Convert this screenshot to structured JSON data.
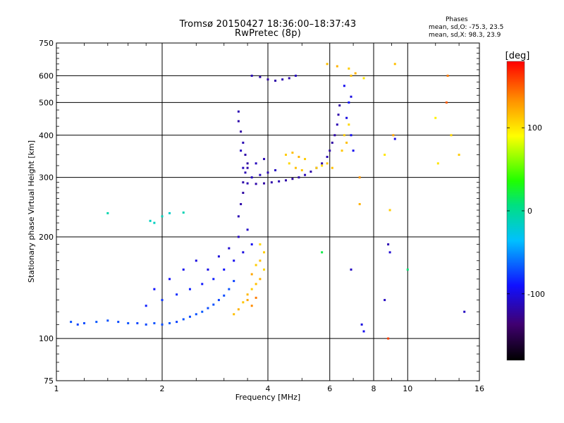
{
  "header": {
    "title_line1": "Tromsø 20150427 18:36:00–18:37:43",
    "title_line2": "RwPretec (8p)",
    "phase_heading": "Phases",
    "phase_o": "mean, sd,O: -75.3, 23.5",
    "phase_x": "mean, sd,X:  98.3, 23.9"
  },
  "colorbar": {
    "unit_label": "[deg]",
    "tick_labels": [
      "100",
      "0",
      "-100"
    ],
    "tick_values": [
      100,
      0,
      -100
    ],
    "range": [
      -180,
      180
    ]
  },
  "chart_data": {
    "type": "scatter",
    "xlabel": "Frequency [MHz]",
    "ylabel": "Stationary phase Virtual Height [km]",
    "x_scale": "log",
    "y_scale": "log",
    "xlim": [
      1,
      16
    ],
    "ylim": [
      75,
      750
    ],
    "x_ticks": [
      1,
      2,
      4,
      6,
      8,
      10,
      16
    ],
    "x_tick_labels": [
      "1",
      "2",
      "4",
      "6",
      "8",
      "10",
      "16"
    ],
    "y_ticks": [
      75,
      100,
      200,
      300,
      400,
      500,
      600,
      750
    ],
    "y_tick_labels": [
      "75",
      "100",
      "200",
      "300",
      "400",
      "500",
      "600",
      "750"
    ],
    "grid": true,
    "series": [
      {
        "values": [
          [
            1.1,
            112,
            -70
          ],
          [
            1.15,
            110,
            -75
          ],
          [
            1.2,
            111,
            -72
          ],
          [
            1.3,
            112,
            -68
          ],
          [
            1.4,
            113,
            -70
          ],
          [
            1.5,
            112,
            -72
          ],
          [
            1.6,
            111,
            -70
          ],
          [
            1.7,
            111,
            -74
          ],
          [
            1.8,
            110,
            -73
          ],
          [
            1.9,
            111,
            -70
          ],
          [
            2.0,
            110,
            -72
          ],
          [
            2.1,
            111,
            -68
          ],
          [
            2.2,
            112,
            -75
          ],
          [
            2.3,
            114,
            -70
          ],
          [
            2.4,
            116,
            -72
          ],
          [
            2.5,
            118,
            -70
          ],
          [
            2.6,
            120,
            -68
          ],
          [
            2.7,
            123,
            -72
          ],
          [
            2.8,
            126,
            -70
          ],
          [
            2.9,
            130,
            -74
          ],
          [
            3.0,
            134,
            -72
          ],
          [
            3.1,
            140,
            -70
          ],
          [
            3.2,
            148,
            -75
          ],
          [
            1.8,
            125,
            -85
          ],
          [
            2.0,
            130,
            -80
          ],
          [
            2.2,
            135,
            -82
          ],
          [
            2.4,
            140,
            -85
          ],
          [
            2.6,
            145,
            -88
          ],
          [
            2.8,
            150,
            -86
          ],
          [
            3.0,
            160,
            -90
          ],
          [
            3.2,
            170,
            -95
          ],
          [
            3.4,
            180,
            -100
          ],
          [
            3.6,
            190,
            -95
          ],
          [
            1.9,
            140,
            -90
          ],
          [
            2.1,
            150,
            -92
          ],
          [
            2.3,
            160,
            -95
          ],
          [
            2.5,
            170,
            -100
          ],
          [
            2.7,
            160,
            -98
          ],
          [
            2.9,
            175,
            -102
          ],
          [
            3.1,
            185,
            -105
          ],
          [
            3.3,
            200,
            -110
          ],
          [
            3.5,
            210,
            -108
          ],
          [
            3.3,
            230,
            -115
          ],
          [
            3.35,
            250,
            -118
          ],
          [
            3.4,
            270,
            -120
          ],
          [
            3.4,
            290,
            -118
          ],
          [
            3.45,
            310,
            -115
          ],
          [
            3.5,
            330,
            -120
          ],
          [
            3.45,
            350,
            -118
          ],
          [
            3.4,
            380,
            -115
          ],
          [
            3.35,
            410,
            -120
          ],
          [
            3.3,
            440,
            -118
          ],
          [
            3.3,
            470,
            -115
          ],
          [
            3.35,
            360,
            -110
          ],
          [
            3.4,
            320,
            -112
          ],
          [
            3.5,
            288,
            -115
          ],
          [
            3.7,
            287,
            -118
          ],
          [
            3.9,
            288,
            -120
          ],
          [
            4.1,
            290,
            -118
          ],
          [
            4.3,
            292,
            -115
          ],
          [
            4.5,
            294,
            -118
          ],
          [
            4.7,
            297,
            -120
          ],
          [
            4.9,
            300,
            -118
          ],
          [
            5.1,
            305,
            -115
          ],
          [
            5.3,
            312,
            -118
          ],
          [
            5.5,
            320,
            -120
          ],
          [
            5.7,
            330,
            -118
          ],
          [
            5.9,
            345,
            -115
          ],
          [
            6.0,
            360,
            -118
          ],
          [
            6.1,
            380,
            -120
          ],
          [
            6.2,
            400,
            -118
          ],
          [
            6.3,
            430,
            -115
          ],
          [
            6.35,
            460,
            -118
          ],
          [
            6.4,
            490,
            -120
          ],
          [
            3.6,
            300,
            -110
          ],
          [
            3.8,
            305,
            -112
          ],
          [
            4.0,
            310,
            -115
          ],
          [
            4.2,
            315,
            -110
          ],
          [
            3.5,
            320,
            -118
          ],
          [
            3.7,
            330,
            -112
          ],
          [
            3.9,
            340,
            -115
          ],
          [
            3.6,
            600,
            -115
          ],
          [
            3.8,
            595,
            -118
          ],
          [
            4.0,
            585,
            -120
          ],
          [
            4.2,
            580,
            -118
          ],
          [
            4.4,
            585,
            -115
          ],
          [
            4.6,
            590,
            -118
          ],
          [
            4.8,
            600,
            -112
          ],
          [
            6.6,
            560,
            -95
          ],
          [
            6.8,
            500,
            -90
          ],
          [
            6.7,
            450,
            -100
          ],
          [
            6.9,
            400,
            -95
          ],
          [
            7.0,
            360,
            -95
          ],
          [
            6.9,
            520,
            -100
          ],
          [
            3.6,
            140,
            110
          ],
          [
            3.7,
            145,
            115
          ],
          [
            3.8,
            150,
            120
          ],
          [
            3.9,
            160,
            105
          ],
          [
            3.7,
            165,
            110
          ],
          [
            3.8,
            170,
            115
          ],
          [
            3.6,
            155,
            125
          ],
          [
            3.5,
            135,
            118
          ],
          [
            3.4,
            128,
            112
          ],
          [
            3.3,
            122,
            120
          ],
          [
            3.2,
            118,
            115
          ],
          [
            3.9,
            180,
            110
          ],
          [
            3.8,
            190,
            105
          ],
          [
            3.5,
            130,
            125
          ],
          [
            3.6,
            125,
            135
          ],
          [
            3.7,
            132,
            140
          ],
          [
            4.5,
            350,
            110
          ],
          [
            4.7,
            355,
            115
          ],
          [
            4.9,
            345,
            120
          ],
          [
            5.1,
            340,
            110
          ],
          [
            4.6,
            330,
            105
          ],
          [
            4.8,
            320,
            115
          ],
          [
            5.0,
            315,
            112
          ],
          [
            5.5,
            320,
            110
          ],
          [
            5.7,
            325,
            105
          ],
          [
            5.9,
            330,
            112
          ],
          [
            6.1,
            320,
            115
          ],
          [
            6.6,
            400,
            110
          ],
          [
            6.8,
            430,
            105
          ],
          [
            6.7,
            380,
            115
          ],
          [
            6.5,
            360,
            112
          ],
          [
            5.9,
            650,
            115
          ],
          [
            6.3,
            640,
            120
          ],
          [
            6.8,
            630,
            110
          ],
          [
            6.9,
            600,
            115
          ],
          [
            7.1,
            610,
            120
          ],
          [
            7.5,
            590,
            100
          ],
          [
            7.3,
            300,
            130
          ],
          [
            7.3,
            250,
            120
          ],
          [
            8.6,
            350,
            100
          ],
          [
            8.9,
            240,
            110
          ],
          [
            9.1,
            400,
            125
          ],
          [
            9.2,
            650,
            115
          ],
          [
            12,
            450,
            95
          ],
          [
            13.3,
            400,
            105
          ],
          [
            14,
            350,
            110
          ],
          [
            12.2,
            330,
            100
          ],
          [
            8.6,
            130,
            -110
          ],
          [
            7.5,
            105,
            -95
          ],
          [
            14.5,
            120,
            -110
          ],
          [
            8.8,
            190,
            -115
          ],
          [
            8.9,
            180,
            -105
          ],
          [
            6.9,
            160,
            -110
          ],
          [
            7.4,
            110,
            -100
          ],
          [
            1.9,
            220,
            -15
          ],
          [
            2.0,
            230,
            -12
          ],
          [
            2.1,
            235,
            -18
          ],
          [
            2.3,
            236,
            -10
          ],
          [
            1.4,
            235,
            -8
          ],
          [
            1.85,
            223,
            -14
          ],
          [
            10,
            160,
            10
          ],
          [
            5.7,
            180,
            20
          ],
          [
            9.2,
            390,
            -100
          ],
          [
            13,
            600,
            140
          ],
          [
            8.8,
            100,
            160
          ],
          [
            12.9,
            500,
            150
          ]
        ]
      }
    ]
  }
}
